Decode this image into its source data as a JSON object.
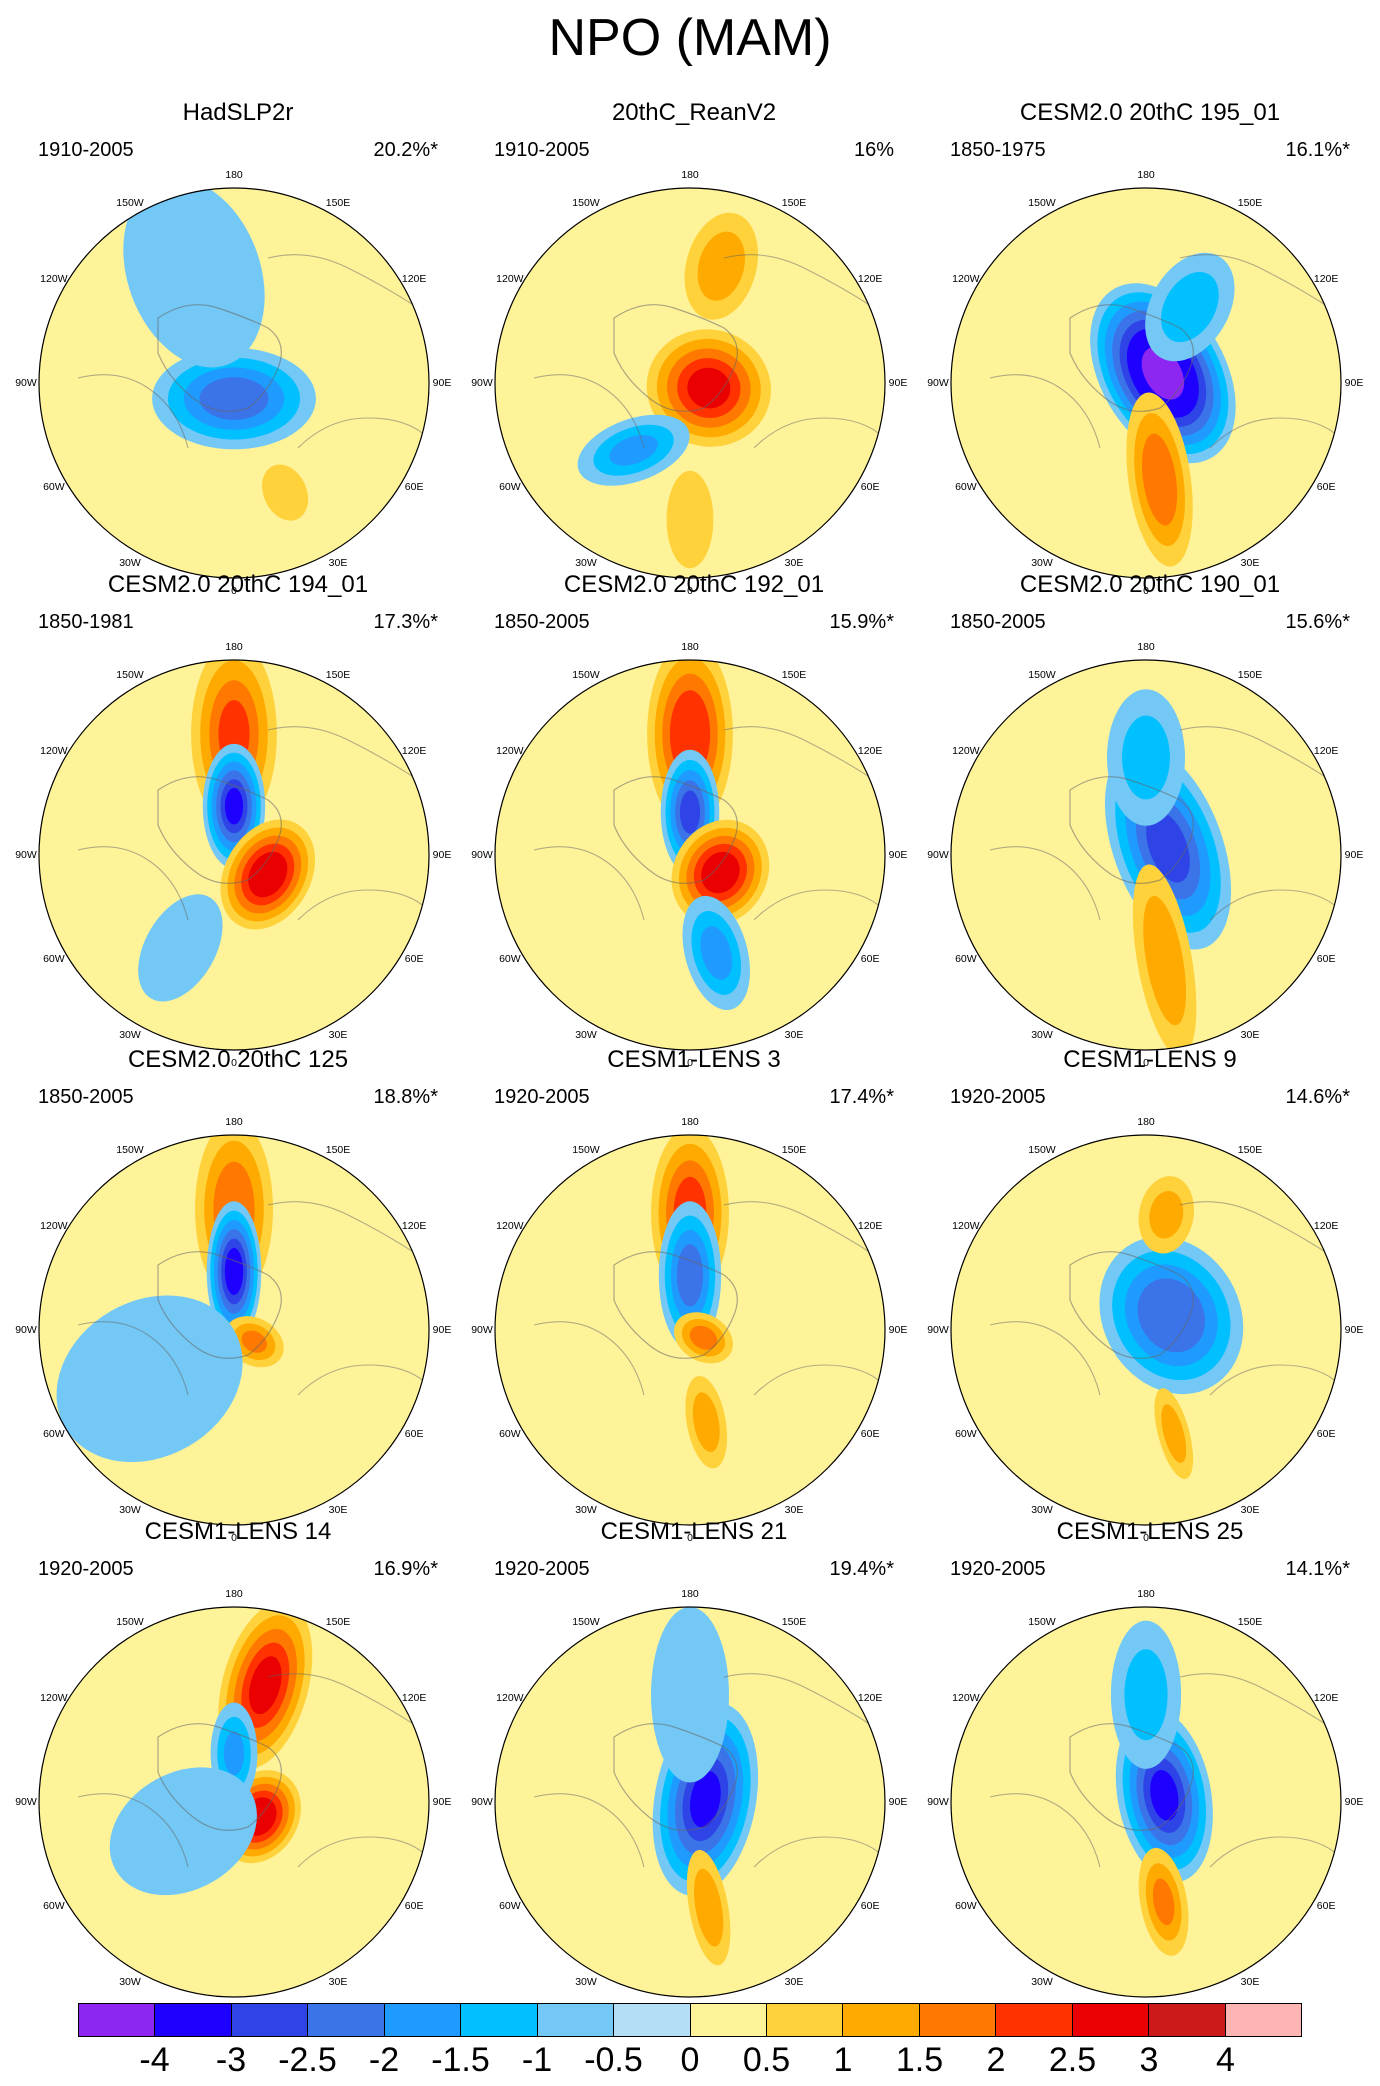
{
  "title": "NPO (MAM)",
  "longitude_labels": [
    "180",
    "150E",
    "120E",
    "90E",
    "60E",
    "30E",
    "0",
    "30W",
    "60W",
    "90W",
    "120W",
    "150W"
  ],
  "colorbar": {
    "labels": [
      "-4",
      "-3",
      "-2.5",
      "-2",
      "-1.5",
      "-1",
      "-0.5",
      "0",
      "0.5",
      "1",
      "1.5",
      "2",
      "2.5",
      "3",
      "4"
    ],
    "colors": [
      "#8c26f0",
      "#1e00ff",
      "#2e44e6",
      "#3b74e8",
      "#1f9bff",
      "#00c0ff",
      "#73c8f5",
      "#b4def5",
      "#fff39a",
      "#ffd23c",
      "#ffaa00",
      "#ff7800",
      "#ff3200",
      "#ea0000",
      "#cc1a1a",
      "#ffb4b4"
    ]
  },
  "panels": [
    {
      "title": "HadSLP2r",
      "period": "1910-2005",
      "variance": "20.2%*",
      "features": [
        {
          "lon": 0,
          "r": 0.08,
          "v": -2.2,
          "a": 0.42,
          "b": 0.26,
          "rot": 90
        },
        {
          "lon": 25,
          "r": 0.62,
          "v": 0.9,
          "a": 0.15,
          "b": 0.11,
          "rot": 0
        },
        {
          "lon": 200,
          "r": 0.6,
          "v": -0.6,
          "a": 0.5,
          "b": 0.34,
          "rot": 0
        }
      ]
    },
    {
      "title": "20thC_ReanV2",
      "period": "1910-2005",
      "variance": "16%",
      "features": [
        {
          "lon": 75,
          "r": 0.1,
          "v": 2.6,
          "a": 0.32,
          "b": 0.3,
          "rot": 0
        },
        {
          "lon": 165,
          "r": 0.62,
          "v": 1.2,
          "a": 0.28,
          "b": 0.18,
          "rot": 0
        },
        {
          "lon": 320,
          "r": 0.45,
          "v": -1.5,
          "a": 0.3,
          "b": 0.16,
          "rot": 30
        },
        {
          "lon": 0,
          "r": 0.7,
          "v": 0.7,
          "a": 0.25,
          "b": 0.12,
          "rot": 0
        }
      ]
    },
    {
      "title": "CESM2.0 20thC 195_01",
      "period": "1850-1975",
      "variance": "16.1%*",
      "features": [
        {
          "lon": 120,
          "r": 0.1,
          "v": -4.2,
          "a": 0.32,
          "b": 0.5,
          "rot": 0
        },
        {
          "lon": 8,
          "r": 0.5,
          "v": 1.8,
          "a": 0.45,
          "b": 0.16,
          "rot": 0
        },
        {
          "lon": 150,
          "r": 0.45,
          "v": -1.2,
          "a": 0.3,
          "b": 0.2,
          "rot": 0
        }
      ]
    },
    {
      "title": "CESM2.0 20thC 194_01",
      "period": "1850-1981",
      "variance": "17.3%*",
      "features": [
        {
          "lon": 180,
          "r": 0.62,
          "v": 2.0,
          "a": 0.48,
          "b": 0.22,
          "rot": 0
        },
        {
          "lon": 180,
          "r": 0.25,
          "v": -3.0,
          "a": 0.32,
          "b": 0.16,
          "rot": 0
        },
        {
          "lon": 60,
          "r": 0.2,
          "v": 2.9,
          "a": 0.22,
          "b": 0.3,
          "rot": 0
        },
        {
          "lon": 330,
          "r": 0.55,
          "v": -0.9,
          "a": 0.3,
          "b": 0.18,
          "rot": 0
        }
      ]
    },
    {
      "title": "CESM2.0 20thC 192_01",
      "period": "1850-2005",
      "variance": "15.9%*",
      "features": [
        {
          "lon": 180,
          "r": 0.62,
          "v": 2.4,
          "a": 0.48,
          "b": 0.22,
          "rot": 0
        },
        {
          "lon": 180,
          "r": 0.22,
          "v": -2.6,
          "a": 0.32,
          "b": 0.15,
          "rot": 0
        },
        {
          "lon": 60,
          "r": 0.18,
          "v": 2.8,
          "a": 0.24,
          "b": 0.28,
          "rot": 0
        },
        {
          "lon": 15,
          "r": 0.52,
          "v": -1.6,
          "a": 0.3,
          "b": 0.16,
          "rot": 0
        }
      ]
    },
    {
      "title": "CESM2.0 20thC 190_01",
      "period": "1850-2005",
      "variance": "15.6%*",
      "features": [
        {
          "lon": 110,
          "r": 0.12,
          "v": -2.6,
          "a": 0.28,
          "b": 0.55,
          "rot": 0
        },
        {
          "lon": 10,
          "r": 0.55,
          "v": 1.3,
          "a": 0.5,
          "b": 0.14,
          "rot": 0
        },
        {
          "lon": 180,
          "r": 0.5,
          "v": -1.1,
          "a": 0.35,
          "b": 0.2,
          "rot": 0
        }
      ]
    },
    {
      "title": "CESM2.0 20thC 125",
      "period": "1850-2005",
      "variance": "18.8%*",
      "features": [
        {
          "lon": 180,
          "r": 0.62,
          "v": 1.8,
          "a": 0.46,
          "b": 0.2,
          "rot": 0
        },
        {
          "lon": 180,
          "r": 0.3,
          "v": -3.2,
          "a": 0.36,
          "b": 0.14,
          "rot": 0
        },
        {
          "lon": 60,
          "r": 0.12,
          "v": 1.5,
          "a": 0.16,
          "b": 0.12,
          "rot": 0
        },
        {
          "lon": 300,
          "r": 0.5,
          "v": -0.8,
          "a": 0.5,
          "b": 0.4,
          "rot": 0
        }
      ]
    },
    {
      "title": "CESM1-LENS 3",
      "period": "1920-2005",
      "variance": "17.4%*",
      "features": [
        {
          "lon": 180,
          "r": 0.6,
          "v": 2.2,
          "a": 0.44,
          "b": 0.2,
          "rot": 0
        },
        {
          "lon": 180,
          "r": 0.28,
          "v": -2.2,
          "a": 0.38,
          "b": 0.16,
          "rot": 0
        },
        {
          "lon": 60,
          "r": 0.08,
          "v": 1.6,
          "a": 0.16,
          "b": 0.12,
          "rot": 0
        },
        {
          "lon": 10,
          "r": 0.48,
          "v": 1.2,
          "a": 0.24,
          "b": 0.1,
          "rot": 0
        }
      ]
    },
    {
      "title": "CESM1-LENS 9",
      "period": "1920-2005",
      "variance": "14.6%*",
      "features": [
        {
          "lon": 120,
          "r": 0.15,
          "v": -2.4,
          "a": 0.35,
          "b": 0.42,
          "rot": 0
        },
        {
          "lon": 170,
          "r": 0.6,
          "v": 1.1,
          "a": 0.2,
          "b": 0.14,
          "rot": 0
        },
        {
          "lon": 15,
          "r": 0.55,
          "v": 1.2,
          "a": 0.24,
          "b": 0.08,
          "rot": 0
        }
      ]
    },
    {
      "title": "CESM1-LENS 14",
      "period": "1920-2005",
      "variance": "16.9%*",
      "features": [
        {
          "lon": 165,
          "r": 0.62,
          "v": 2.6,
          "a": 0.44,
          "b": 0.22,
          "rot": 0
        },
        {
          "lon": 60,
          "r": 0.15,
          "v": 2.9,
          "a": 0.2,
          "b": 0.25,
          "rot": 0
        },
        {
          "lon": 180,
          "r": 0.25,
          "v": -1.5,
          "a": 0.26,
          "b": 0.12,
          "rot": 0
        },
        {
          "lon": 300,
          "r": 0.3,
          "v": -0.8,
          "a": 0.4,
          "b": 0.3,
          "rot": 0
        }
      ]
    },
    {
      "title": "CESM1-LENS 21",
      "period": "1920-2005",
      "variance": "19.4%*",
      "features": [
        {
          "lon": 100,
          "r": 0.08,
          "v": -3.0,
          "a": 0.26,
          "b": 0.5,
          "rot": 20
        },
        {
          "lon": 10,
          "r": 0.55,
          "v": 1.3,
          "a": 0.3,
          "b": 0.1,
          "rot": 0
        },
        {
          "lon": 180,
          "r": 0.55,
          "v": -0.9,
          "a": 0.45,
          "b": 0.2,
          "rot": 0
        }
      ]
    },
    {
      "title": "CESM1-LENS 25",
      "period": "1920-2005",
      "variance": "14.1%*",
      "features": [
        {
          "lon": 110,
          "r": 0.1,
          "v": -3.0,
          "a": 0.24,
          "b": 0.45,
          "rot": 10
        },
        {
          "lon": 10,
          "r": 0.52,
          "v": 1.5,
          "a": 0.28,
          "b": 0.12,
          "rot": 0
        },
        {
          "lon": 180,
          "r": 0.55,
          "v": -1.1,
          "a": 0.38,
          "b": 0.18,
          "rot": 0
        }
      ]
    }
  ]
}
